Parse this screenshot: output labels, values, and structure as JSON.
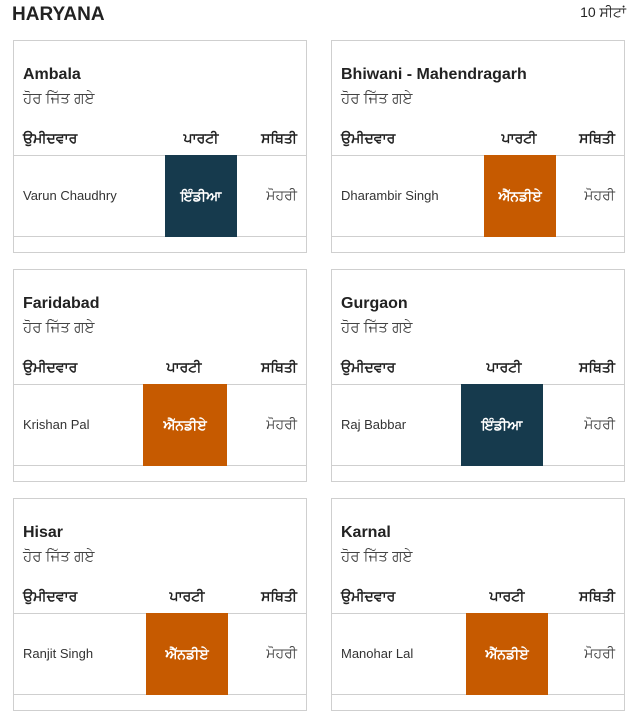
{
  "header": {
    "state": "HARYANA",
    "seats": "10 ਸੀਟਾਂ"
  },
  "colors": {
    "india": "#163a4d",
    "nda": "#c65a00"
  },
  "constituencies": [
    {
      "name": "Ambala",
      "status": "ਹੋਰ ਜਿੱਤ ਗਏ",
      "col_candidate": "ਉਮੀਦਵਾਰ",
      "col_party": "ਪਾਰਟੀ",
      "col_status": "ਸਥਿਤੀ",
      "candidate": "Varun Chaudhry",
      "party": "ਇੰਡੀਆ",
      "party_key": "india",
      "result": "ਮੋਹਰੀ"
    },
    {
      "name": "Bhiwani - Mahendragarh",
      "status": "ਹੋਰ ਜਿੱਤ ਗਏ",
      "col_candidate": "ਉਮੀਦਵਾਰ",
      "col_party": "ਪਾਰਟੀ",
      "col_status": "ਸਥਿਤੀ",
      "candidate": "Dharambir Singh",
      "party": "ਐੱਨਡੀਏ",
      "party_key": "nda",
      "result": "ਮੋਹਰੀ"
    },
    {
      "name": "Faridabad",
      "status": "ਹੋਰ ਜਿੱਤ ਗਏ",
      "col_candidate": "ਉਮੀਦਵਾਰ",
      "col_party": "ਪਾਰਟੀ",
      "col_status": "ਸਥਿਤੀ",
      "candidate": "Krishan Pal",
      "party": "ਐੱਨਡੀਏ",
      "party_key": "nda",
      "result": "ਮੋਹਰੀ"
    },
    {
      "name": "Gurgaon",
      "status": "ਹੋਰ ਜਿੱਤ ਗਏ",
      "col_candidate": "ਉਮੀਦਵਾਰ",
      "col_party": "ਪਾਰਟੀ",
      "col_status": "ਸਥਿਤੀ",
      "candidate": "Raj Babbar",
      "party": "ਇੰਡੀਆ",
      "party_key": "india",
      "result": "ਮੋਹਰੀ"
    },
    {
      "name": "Hisar",
      "status": "ਹੋਰ ਜਿੱਤ ਗਏ",
      "col_candidate": "ਉਮੀਦਵਾਰ",
      "col_party": "ਪਾਰਟੀ",
      "col_status": "ਸਥਿਤੀ",
      "candidate": "Ranjit Singh",
      "party": "ਐੱਨਡੀਏ",
      "party_key": "nda",
      "result": "ਮੋਹਰੀ"
    },
    {
      "name": "Karnal",
      "status": "ਹੋਰ ਜਿੱਤ ਗਏ",
      "col_candidate": "ਉਮੀਦਵਾਰ",
      "col_party": "ਪਾਰਟੀ",
      "col_status": "ਸਥਿਤੀ",
      "candidate": "Manohar Lal",
      "party": "ਐੱਨਡੀਏ",
      "party_key": "nda",
      "result": "ਮੋਹਰੀ"
    }
  ]
}
